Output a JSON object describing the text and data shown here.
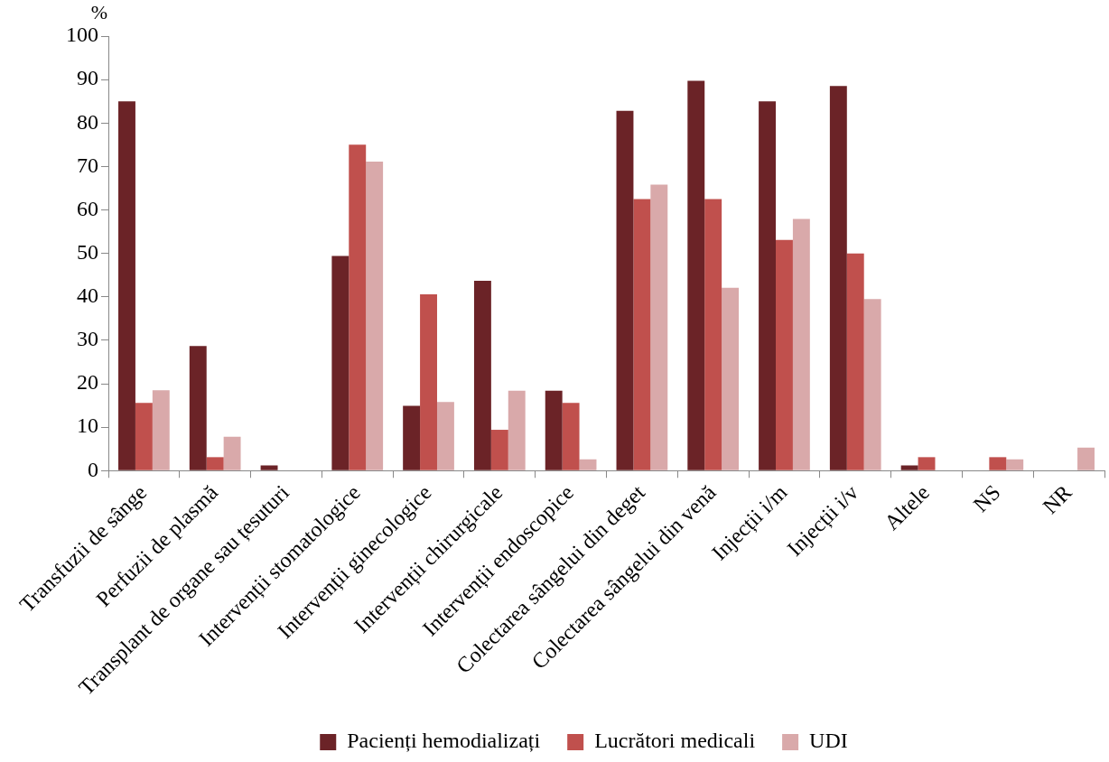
{
  "chart_data": {
    "type": "bar",
    "ylabel": "%",
    "categories": [
      "Transfuzii de sânge",
      "Perfuzii de plasmă",
      "Transplant de organe sau țesuturi",
      "Intervenții stomatologice",
      "Intervenții ginecologice",
      "Intervenții chirurgicale",
      "Intervenții endoscopice",
      "Colectarea sângelui din deget",
      "Colectarea sângelui din venă",
      "Injecții i/m",
      "Injecții i/v",
      "Altele",
      "NS",
      "NR"
    ],
    "series": [
      {
        "name": "Pacienți hemodializați",
        "color": "#6b2327",
        "values": [
          85,
          28.7,
          1.2,
          49.4,
          14.9,
          43.7,
          18.4,
          82.8,
          89.7,
          85,
          88.5,
          1.2,
          0,
          0
        ]
      },
      {
        "name": "Lucrători medicali",
        "color": "#c0504d",
        "values": [
          15.6,
          3.1,
          0,
          75,
          40.6,
          9.4,
          15.6,
          62.5,
          62.5,
          53.1,
          50,
          3.1,
          3.1,
          0
        ]
      },
      {
        "name": "UDI",
        "color": "#d9a9aa",
        "values": [
          18.5,
          7.8,
          0,
          71.1,
          15.8,
          18.4,
          2.6,
          65.8,
          42.1,
          57.9,
          39.5,
          0,
          2.6,
          5.3
        ]
      }
    ],
    "ylim": [
      0,
      100
    ],
    "yticks": [
      0,
      10,
      20,
      30,
      40,
      50,
      60,
      70,
      80,
      90,
      100
    ],
    "grid": false,
    "legend": "bottom"
  }
}
